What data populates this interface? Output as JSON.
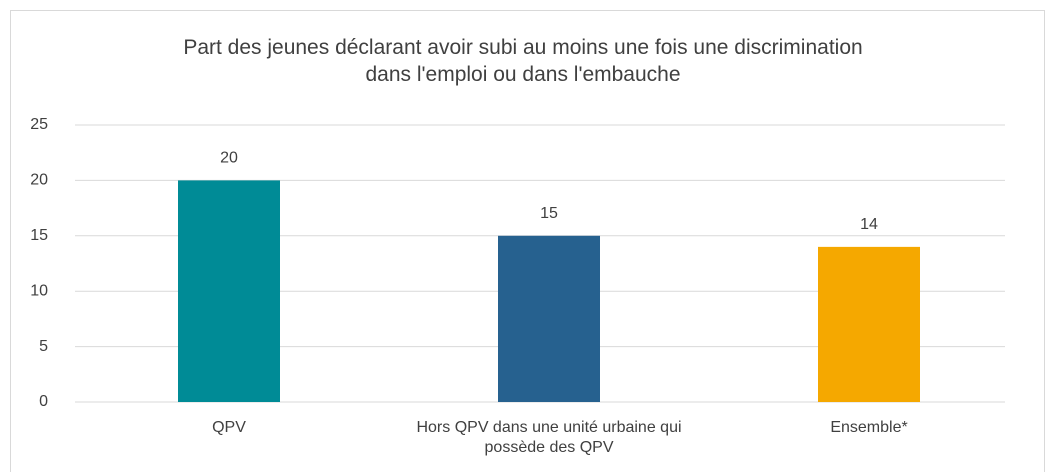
{
  "chart_data": {
    "type": "bar",
    "title": "Part des jeunes déclarant avoir subi au moins une fois une discrimination dans l'emploi ou dans l'embauche",
    "categories": [
      "QPV",
      "Hors QPV dans une unité urbaine qui possède des QPV",
      "Ensemble*"
    ],
    "values": [
      20,
      15,
      14
    ],
    "colors": [
      "#008b96",
      "#26618f",
      "#f5a800"
    ],
    "ylim": [
      0,
      25
    ],
    "yticks": [
      0,
      5,
      10,
      15,
      20,
      25
    ],
    "grid": true
  }
}
